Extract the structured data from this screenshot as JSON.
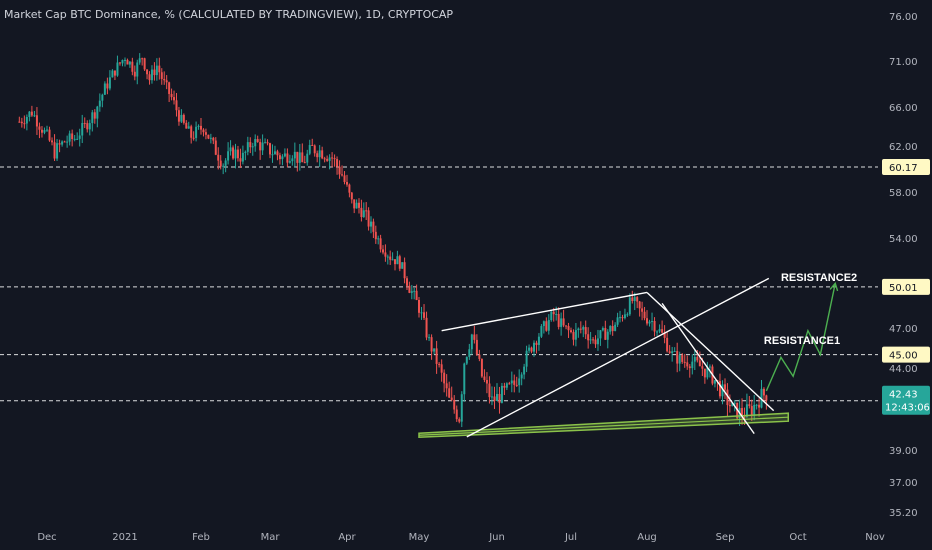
{
  "chart_data": {
    "type": "candlestick",
    "title": "Market Cap BTC Dominance, % (CALCULATED BY TRADINGVIEW), 1D, CRYPTOCAP",
    "ylim": [
      35.2,
      76.5
    ],
    "y_ticks": [
      "76.00",
      "71.00",
      "66.00",
      "62.00",
      "58.00",
      "54.00",
      "50.00",
      "47.00",
      "44.00",
      "39.00",
      "37.00",
      "35.20"
    ],
    "x_ticks": [
      "Dec",
      "2021",
      "Feb",
      "Mar",
      "Apr",
      "May",
      "Jun",
      "Jul",
      "Aug",
      "Sep",
      "Oct",
      "Nov"
    ],
    "colors": {
      "up": "#26a69a",
      "down": "#ef5350",
      "background": "#131722",
      "grid": "#ffffff",
      "support_band": "#8bc34a",
      "projection": "#4caf50"
    },
    "series": [
      {
        "name": "BTC Dominance",
        "close_path": [
          [
            "2020-11-20",
            64.5
          ],
          [
            "2020-11-25",
            65.5
          ],
          [
            "2020-11-28",
            64.2
          ],
          [
            "2020-12-01",
            63.0
          ],
          [
            "2020-12-04",
            61.5
          ],
          [
            "2020-12-08",
            62.5
          ],
          [
            "2020-12-12",
            62.8
          ],
          [
            "2020-12-16",
            64.0
          ],
          [
            "2020-12-20",
            65.5
          ],
          [
            "2020-12-24",
            68.0
          ],
          [
            "2020-12-28",
            70.0
          ],
          [
            "2021-01-01",
            71.5
          ],
          [
            "2021-01-05",
            70.0
          ],
          [
            "2021-01-08",
            71.5
          ],
          [
            "2021-01-11",
            69.0
          ],
          [
            "2021-01-14",
            70.5
          ],
          [
            "2021-01-17",
            68.5
          ],
          [
            "2021-01-20",
            67.0
          ],
          [
            "2021-01-24",
            64.5
          ],
          [
            "2021-01-28",
            63.0
          ],
          [
            "2021-02-02",
            64.0
          ],
          [
            "2021-02-06",
            62.0
          ],
          [
            "2021-02-10",
            60.5
          ],
          [
            "2021-02-14",
            61.5
          ],
          [
            "2021-02-18",
            61.0
          ],
          [
            "2021-02-22",
            62.5
          ],
          [
            "2021-02-26",
            62.0
          ],
          [
            "2021-03-02",
            61.5
          ],
          [
            "2021-03-06",
            61.0
          ],
          [
            "2021-03-10",
            61.5
          ],
          [
            "2021-03-14",
            60.5
          ],
          [
            "2021-03-18",
            61.8
          ],
          [
            "2021-03-22",
            61.5
          ],
          [
            "2021-03-26",
            61.0
          ],
          [
            "2021-03-30",
            59.5
          ],
          [
            "2021-04-03",
            57.0
          ],
          [
            "2021-04-07",
            56.5
          ],
          [
            "2021-04-11",
            55.0
          ],
          [
            "2021-04-15",
            53.5
          ],
          [
            "2021-04-19",
            52.5
          ],
          [
            "2021-04-23",
            52.0
          ],
          [
            "2021-04-27",
            50.0
          ],
          [
            "2021-05-01",
            48.5
          ],
          [
            "2021-05-05",
            46.0
          ],
          [
            "2021-05-09",
            44.0
          ],
          [
            "2021-05-13",
            42.0
          ],
          [
            "2021-05-17",
            41.0
          ],
          [
            "2021-05-19",
            44.5
          ],
          [
            "2021-05-22",
            46.5
          ],
          [
            "2021-05-26",
            43.5
          ],
          [
            "2021-05-30",
            42.0
          ],
          [
            "2021-06-04",
            42.5
          ],
          [
            "2021-06-08",
            43.0
          ],
          [
            "2021-06-12",
            44.5
          ],
          [
            "2021-06-16",
            46.0
          ],
          [
            "2021-06-20",
            47.0
          ],
          [
            "2021-06-24",
            48.0
          ],
          [
            "2021-06-28",
            47.0
          ],
          [
            "2021-07-02",
            46.5
          ],
          [
            "2021-07-06",
            47.0
          ],
          [
            "2021-07-10",
            46.0
          ],
          [
            "2021-07-14",
            46.5
          ],
          [
            "2021-07-18",
            47.0
          ],
          [
            "2021-07-22",
            48.0
          ],
          [
            "2021-07-26",
            49.0
          ],
          [
            "2021-07-30",
            48.0
          ],
          [
            "2021-08-03",
            47.5
          ],
          [
            "2021-08-07",
            46.5
          ],
          [
            "2021-08-11",
            45.0
          ],
          [
            "2021-08-15",
            44.5
          ],
          [
            "2021-08-19",
            44.5
          ],
          [
            "2021-08-23",
            44.0
          ],
          [
            "2021-08-27",
            43.5
          ],
          [
            "2021-08-31",
            42.5
          ],
          [
            "2021-09-04",
            41.5
          ],
          [
            "2021-09-08",
            41.2
          ],
          [
            "2021-09-12",
            41.5
          ],
          [
            "2021-09-16",
            42.3
          ],
          [
            "2021-09-18",
            42.43
          ]
        ]
      }
    ],
    "horizontal_levels": [
      {
        "value": 60.17,
        "label": "60.17"
      },
      {
        "value": 50.01,
        "label": "50.01"
      },
      {
        "value": 45.0,
        "label": "45.00"
      },
      {
        "value": 42.0,
        "label": "42.00"
      }
    ],
    "current_price": {
      "value": 42.43,
      "label": "42.43",
      "countdown": "12:43:06"
    },
    "annotations": [
      {
        "text": "RESISTANCE2",
        "date": "2021-09-24",
        "value": 50.5
      },
      {
        "text": "RESISTANCE1",
        "date": "2021-09-17",
        "value": 45.8
      }
    ],
    "trendlines": [
      {
        "name": "upper-wedge-line",
        "from": [
          "2021-05-10",
          46.8
        ],
        "to": [
          "2021-08-01",
          49.6
        ]
      },
      {
        "name": "lower-wedge-line",
        "from": [
          "2021-05-20",
          39.8
        ],
        "to": [
          "2021-09-19",
          50.7
        ]
      },
      {
        "name": "descending-channel-top",
        "from": [
          "2021-08-01",
          49.6
        ],
        "to": [
          "2021-09-21",
          41.4
        ]
      },
      {
        "name": "descending-channel-bottom",
        "from": [
          "2021-08-07",
          48.8
        ],
        "to": [
          "2021-09-13",
          40.0
        ]
      }
    ],
    "support_band": {
      "from": [
        "2021-05-01",
        39.9
      ],
      "to": [
        "2021-09-27",
        41.0
      ]
    },
    "projection": [
      [
        "2021-09-18",
        42.6
      ],
      [
        "2021-09-24",
        44.8
      ],
      [
        "2021-09-29",
        43.5
      ],
      [
        "2021-10-05",
        46.8
      ],
      [
        "2021-10-10",
        45.0
      ],
      [
        "2021-10-16",
        50.3
      ]
    ]
  }
}
